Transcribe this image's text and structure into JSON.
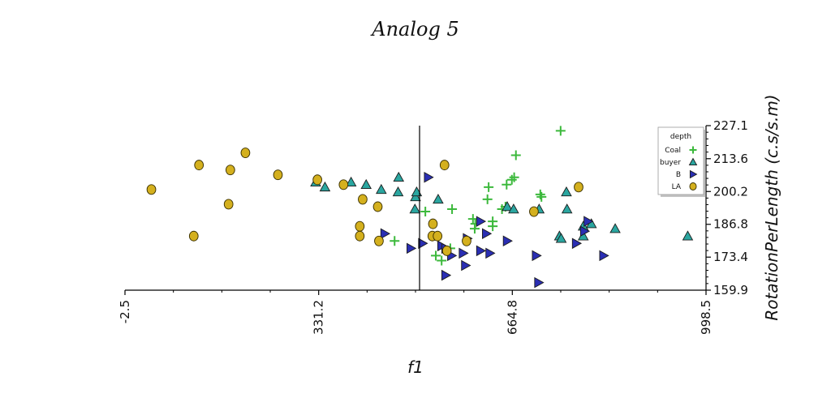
{
  "chart_data": {
    "type": "scatter",
    "title": "Analog 5",
    "xlabel": "f1",
    "ylabel": "RotationPerLength (c.s/s.m)",
    "xlim": [
      -2.5,
      998.5
    ],
    "ylim": [
      159.9,
      227.1
    ],
    "x_ticks": [
      "-2.5",
      "331.2",
      "664.8",
      "998.5"
    ],
    "y_ticks": [
      "159.9",
      "173.4",
      "186.8",
      "200.2",
      "213.6",
      "227.1"
    ],
    "vertical_line_x": 505,
    "grid": false,
    "legend": {
      "title": "depth",
      "position": "top-right"
    },
    "series": [
      {
        "name": "Coal",
        "marker": "plus",
        "color": "#3cb93c",
        "points": [
          [
            748,
            225
          ],
          [
            671,
            215
          ],
          [
            668,
            206
          ],
          [
            664,
            205
          ],
          [
            655,
            203
          ],
          [
            624,
            202
          ],
          [
            622,
            197
          ],
          [
            713,
            199
          ],
          [
            715,
            198
          ],
          [
            653,
            194
          ],
          [
            647,
            193
          ],
          [
            561,
            193
          ],
          [
            515,
            192
          ],
          [
            597,
            189
          ],
          [
            631,
            188
          ],
          [
            631,
            186
          ],
          [
            601,
            187
          ],
          [
            600,
            185
          ],
          [
            462,
            180
          ],
          [
            533,
            174
          ],
          [
            543,
            172
          ],
          [
            558,
            177
          ]
        ]
      },
      {
        "name": "buyer",
        "marker": "triangle",
        "color": "#2aa6a0",
        "points": [
          [
            326,
            204
          ],
          [
            342,
            202
          ],
          [
            387,
            204
          ],
          [
            413,
            203
          ],
          [
            439,
            201
          ],
          [
            468,
            200
          ],
          [
            469,
            206
          ],
          [
            498,
            198
          ],
          [
            500,
            200
          ],
          [
            497,
            193
          ],
          [
            537,
            197
          ],
          [
            656,
            194
          ],
          [
            667,
            193
          ],
          [
            711,
            193
          ],
          [
            759,
            193
          ],
          [
            758,
            200
          ],
          [
            746,
            182
          ],
          [
            749,
            181
          ],
          [
            787,
            182
          ],
          [
            787,
            186
          ],
          [
            801,
            187
          ],
          [
            842,
            185
          ],
          [
            967,
            182
          ]
        ]
      },
      {
        "name": "B",
        "marker": "triangle-right",
        "color": "#2a2eb3",
        "points": [
          [
            520,
            206
          ],
          [
            445,
            183
          ],
          [
            490,
            177
          ],
          [
            510,
            179
          ],
          [
            543,
            178
          ],
          [
            550,
            177
          ],
          [
            560,
            174
          ],
          [
            580,
            175
          ],
          [
            587,
            181
          ],
          [
            610,
            188
          ],
          [
            620,
            183
          ],
          [
            610,
            176
          ],
          [
            626,
            175
          ],
          [
            656,
            180
          ],
          [
            706,
            174
          ],
          [
            775,
            179
          ],
          [
            789,
            184
          ],
          [
            795,
            188
          ],
          [
            822,
            174
          ],
          [
            550,
            166
          ],
          [
            584,
            170
          ],
          [
            710,
            163
          ]
        ]
      },
      {
        "name": "LA",
        "marker": "circle",
        "color": "#d4b01e",
        "points": [
          [
            43,
            201
          ],
          [
            125,
            211
          ],
          [
            179,
            209
          ],
          [
            205,
            216
          ],
          [
            261,
            207
          ],
          [
            329,
            205
          ],
          [
            374,
            203
          ],
          [
            176,
            195
          ],
          [
            407,
            197
          ],
          [
            433,
            194
          ],
          [
            116,
            182
          ],
          [
            402,
            186
          ],
          [
            402,
            182
          ],
          [
            435,
            180
          ],
          [
            528,
            187
          ],
          [
            527,
            182
          ],
          [
            536,
            182
          ],
          [
            552,
            176
          ],
          [
            586,
            180
          ],
          [
            548,
            211
          ],
          [
            702,
            192
          ],
          [
            779,
            202
          ]
        ]
      }
    ]
  }
}
